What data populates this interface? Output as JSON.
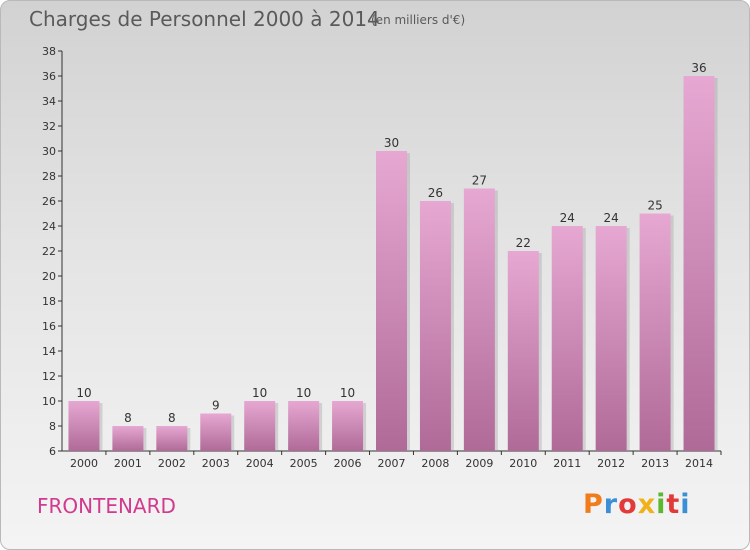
{
  "header": {
    "title": "Charges de Personnel 2000 à 2014",
    "subtitle": "(en milliers d'€)"
  },
  "footer": {
    "commune": "FRONTENARD",
    "logo_text": "Proxiti",
    "logo_colors": [
      "#f07c1b",
      "#3a8fd6",
      "#e23a3a",
      "#f0b21b",
      "#5cb82e",
      "#e23a3a",
      "#3a8fd6"
    ]
  },
  "colors": {
    "bar_top": "#e6a8d2",
    "bar_bottom": "#b06a98",
    "bar_shadow": "#9a9a9a",
    "axis": "#333333"
  },
  "chart_data": {
    "type": "bar",
    "title": "Charges de Personnel 2000 à 2014",
    "subtitle": "(en milliers d'€)",
    "categories": [
      "2000",
      "2001",
      "2002",
      "2003",
      "2004",
      "2005",
      "2006",
      "2007",
      "2008",
      "2009",
      "2010",
      "2011",
      "2012",
      "2013",
      "2014"
    ],
    "values": [
      10,
      8,
      8,
      9,
      10,
      10,
      10,
      30,
      26,
      27,
      22,
      24,
      24,
      25,
      36
    ],
    "ylim": [
      6,
      38
    ],
    "yticks": [
      6,
      8,
      10,
      12,
      14,
      16,
      18,
      20,
      22,
      24,
      26,
      28,
      30,
      32,
      34,
      36,
      38
    ],
    "grid": false,
    "legend": "none"
  }
}
